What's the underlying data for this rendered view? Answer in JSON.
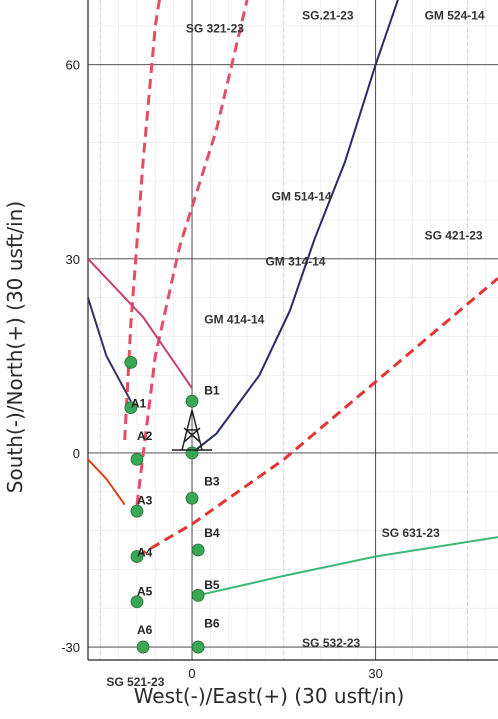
{
  "chart_data": {
    "type": "scatter",
    "title": "",
    "xlabel": "West(-)/East(+) (30 usft/in)",
    "ylabel": "South(-)/North(+) (30 usft/in)",
    "xlim": [
      -17,
      50
    ],
    "ylim": [
      -32,
      70
    ],
    "x_ticks": [
      0,
      30
    ],
    "y_ticks": [
      -30,
      0,
      30,
      60
    ],
    "grid": true,
    "slots": [
      {
        "label": "A1",
        "x": -10,
        "y": 7
      },
      {
        "label": "A2",
        "x": -9,
        "y": 2
      },
      {
        "label": "A3",
        "x": -9,
        "y": -8
      },
      {
        "label": "A4",
        "x": -9,
        "y": -16
      },
      {
        "label": "A5",
        "x": -9,
        "y": -22
      },
      {
        "label": "A6",
        "x": -9,
        "y": -28
      },
      {
        "label": "B1",
        "x": 2,
        "y": 9
      },
      {
        "label": "B3",
        "x": 2,
        "y": -5
      },
      {
        "label": "B4",
        "x": 2,
        "y": -13
      },
      {
        "label": "B5",
        "x": 2,
        "y": -21
      },
      {
        "label": "B6",
        "x": 2,
        "y": -27
      }
    ],
    "points": [
      {
        "x": -10,
        "y": 14
      },
      {
        "x": -10,
        "y": 7
      },
      {
        "x": 0,
        "y": 8
      },
      {
        "x": -9,
        "y": -1
      },
      {
        "x": 0,
        "y": 0
      },
      {
        "x": -9,
        "y": -9
      },
      {
        "x": 0,
        "y": -7
      },
      {
        "x": -9,
        "y": -16
      },
      {
        "x": 1,
        "y": -15
      },
      {
        "x": -9,
        "y": -23
      },
      {
        "x": 1,
        "y": -22
      },
      {
        "x": -8,
        "y": -30
      },
      {
        "x": 1,
        "y": -30
      }
    ],
    "well_paths": [
      {
        "name": "GM 524-14",
        "color": "#2a2a6b",
        "style": "solid",
        "points": [
          [
            0,
            0
          ],
          [
            4,
            3
          ],
          [
            11,
            12
          ],
          [
            16,
            22
          ],
          [
            20,
            33
          ],
          [
            25,
            45
          ],
          [
            30,
            60
          ],
          [
            34,
            71
          ]
        ],
        "label": {
          "x": 38,
          "y": 67
        }
      },
      {
        "name": "SG 321-23",
        "color": "#e0506a",
        "style": "dashed",
        "points": [
          [
            -9,
            -8
          ],
          [
            -6,
            15
          ],
          [
            -2,
            32
          ],
          [
            4,
            50
          ],
          [
            9,
            70
          ]
        ],
        "label": {
          "x": -1,
          "y": 65
        }
      },
      {
        "name": "SG 421-23",
        "color": "#e05060",
        "style": "dashed",
        "points": [
          [
            -11,
            2
          ],
          [
            -10,
            20
          ],
          [
            -8,
            45
          ],
          [
            -6,
            66
          ],
          [
            -5,
            72
          ]
        ],
        "label": null
      },
      {
        "name": "SG 631-23",
        "color": "#e03535",
        "style": "dashed",
        "points": [
          [
            -9,
            -16
          ],
          [
            0,
            -11
          ],
          [
            15,
            -1
          ],
          [
            30,
            11
          ],
          [
            45,
            23
          ],
          [
            50,
            27
          ]
        ],
        "label": {
          "x": 31,
          "y": -13
        }
      },
      {
        "name": "GM 314-14",
        "color": "#c8407a",
        "style": "solid",
        "points": [
          [
            -17,
            30
          ],
          [
            -8,
            21
          ],
          [
            0,
            10
          ]
        ],
        "label": null
      },
      {
        "name": "GM 414-14",
        "color": "#3c3060",
        "style": "solid",
        "points": [
          [
            -17,
            24
          ],
          [
            -14,
            15
          ],
          [
            -10,
            8
          ]
        ],
        "label": null
      },
      {
        "name": "SG 521-23",
        "color": "#e04010",
        "style": "solid",
        "points": [
          [
            -17,
            -1
          ],
          [
            -14,
            -4
          ],
          [
            -11,
            -8
          ]
        ],
        "label": {
          "x": -14,
          "y": -36
        }
      },
      {
        "name": "SG 532-23",
        "color": "#3cb878",
        "style": "solid",
        "points": [
          [
            1,
            -22
          ],
          [
            15,
            -19
          ],
          [
            30,
            -16
          ],
          [
            50,
            -13
          ]
        ],
        "label": null
      }
    ],
    "text_labels": [
      {
        "text": "SG.21-23",
        "x": 18,
        "y": 67
      },
      {
        "text": "GM 514-14",
        "x": 13,
        "y": 39
      },
      {
        "text": "GM 314-14",
        "x": 12,
        "y": 29
      },
      {
        "text": "SG 421-23",
        "x": 38,
        "y": 33
      },
      {
        "text": "GM 414-14",
        "x": 2,
        "y": 20
      },
      {
        "text": "SG 532-23",
        "x": 18,
        "y": -30
      }
    ]
  }
}
